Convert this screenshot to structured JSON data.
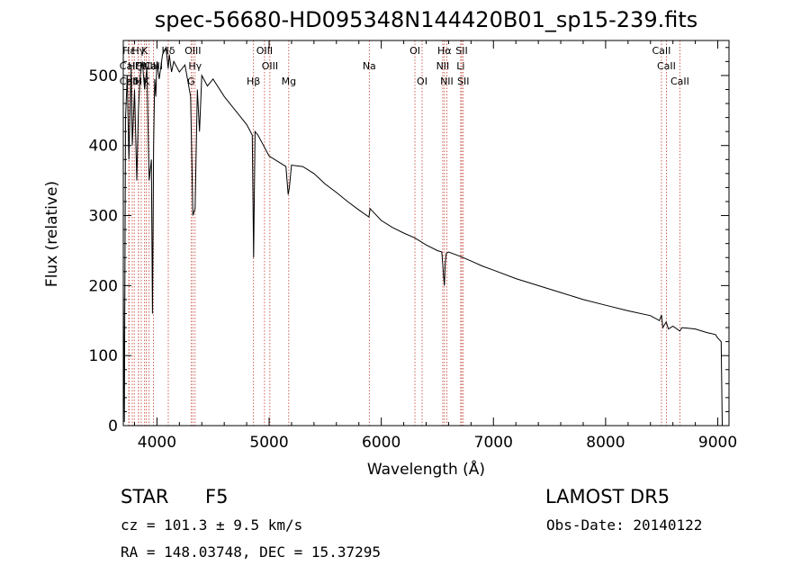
{
  "chart_data": {
    "type": "line",
    "title": "spec-56680-HD095348N144420B01_sp15-239.fits",
    "xlabel": "Wavelength (Å)",
    "ylabel": "Flux (relative)",
    "xlim": [
      3700,
      9100
    ],
    "ylim": [
      0,
      550
    ],
    "xticks": [
      4000,
      5000,
      6000,
      7000,
      8000,
      9000
    ],
    "yticks": [
      0,
      100,
      200,
      300,
      400,
      500
    ],
    "grid": false,
    "line_color": "#000000",
    "marker_color": "#c0392b",
    "series": [
      {
        "x": [
          3700,
          3710,
          3720,
          3735,
          3750,
          3770,
          3780,
          3800,
          3820,
          3835,
          3850,
          3870,
          3890,
          3910,
          3930,
          3950,
          3960,
          3970,
          3980,
          3990,
          4000,
          4020,
          4050,
          4080,
          4100,
          4110,
          4130,
          4150,
          4200,
          4250,
          4300,
          4320,
          4340,
          4360,
          4380,
          4400,
          4450,
          4500,
          4600,
          4700,
          4800,
          4850,
          4862,
          4875,
          4900,
          4950,
          5000,
          5100,
          5150,
          5170,
          5180,
          5200,
          5300,
          5400,
          5500,
          5600,
          5700,
          5800,
          5890,
          5900,
          6000,
          6100,
          6200,
          6300,
          6400,
          6500,
          6540,
          6555,
          6563,
          6570,
          6580,
          6600,
          6700,
          6800,
          6900,
          7000,
          7200,
          7400,
          7600,
          7800,
          8000,
          8200,
          8400,
          8480,
          8498,
          8510,
          8540,
          8560,
          8600,
          8662,
          8680,
          8800,
          8900,
          8980,
          9000,
          9030,
          9040,
          9060
        ],
        "y": [
          200,
          5,
          440,
          500,
          380,
          510,
          400,
          480,
          350,
          450,
          500,
          520,
          480,
          510,
          350,
          380,
          160,
          400,
          495,
          470,
          520,
          495,
          530,
          540,
          510,
          530,
          505,
          520,
          505,
          515,
          470,
          300,
          310,
          480,
          420,
          500,
          485,
          495,
          470,
          450,
          430,
          415,
          240,
          420,
          415,
          400,
          385,
          375,
          370,
          330,
          340,
          372,
          370,
          360,
          345,
          333,
          320,
          308,
          298,
          310,
          293,
          283,
          275,
          268,
          258,
          250,
          248,
          215,
          200,
          232,
          246,
          248,
          242,
          235,
          228,
          222,
          210,
          200,
          190,
          180,
          172,
          164,
          157,
          150,
          158,
          140,
          148,
          138,
          142,
          135,
          140,
          138,
          133,
          130,
          125,
          120,
          0,
          0
        ]
      }
    ],
    "line_markers": [
      {
        "label": "Hε",
        "wavelength": 3750,
        "row": 0
      },
      {
        "label": "CaII",
        "wavelength": 3750,
        "row": 1
      },
      {
        "label": "CaII",
        "wavelength": 3750,
        "row": 2
      },
      {
        "label": "Hδ",
        "wavelength": 3780,
        "row": 2
      },
      {
        "label": "Hζ",
        "wavelength": 3798,
        "row": 1
      },
      {
        "label": "Hγ",
        "wavelength": 3835,
        "row": 0
      },
      {
        "label": "H",
        "wavelength": 3835,
        "row": 2
      },
      {
        "label": "Hε",
        "wavelength": 3860,
        "row": 1
      },
      {
        "label": "K",
        "wavelength": 3890,
        "row": 0
      },
      {
        "label": "K",
        "wavelength": 3905,
        "row": 2
      },
      {
        "label": "NII",
        "wavelength": 3930,
        "row": 1
      },
      {
        "label": "CaII",
        "wavelength": 3969,
        "row": 1
      },
      {
        "label": "Hδ",
        "wavelength": 4101,
        "row": 0
      },
      {
        "label": "OIII",
        "wavelength": 4320,
        "row": 0
      },
      {
        "label": "Hγ",
        "wavelength": 4340,
        "row": 1
      },
      {
        "label": "G",
        "wavelength": 4305,
        "row": 2
      },
      {
        "label": "Hβ",
        "wavelength": 4861,
        "row": 2
      },
      {
        "label": "OIII",
        "wavelength": 4959,
        "row": 0
      },
      {
        "label": "OIII",
        "wavelength": 5007,
        "row": 1
      },
      {
        "label": "Mg",
        "wavelength": 5175,
        "row": 2
      },
      {
        "label": "Na",
        "wavelength": 5893,
        "row": 1
      },
      {
        "label": "OI",
        "wavelength": 6300,
        "row": 0
      },
      {
        "label": "OI",
        "wavelength": 6364,
        "row": 2
      },
      {
        "label": "Hα",
        "wavelength": 6563,
        "row": 0
      },
      {
        "label": "NII",
        "wavelength": 6548,
        "row": 1
      },
      {
        "label": "NII",
        "wavelength": 6584,
        "row": 2
      },
      {
        "label": "SII",
        "wavelength": 6717,
        "row": 0
      },
      {
        "label": "Li",
        "wavelength": 6708,
        "row": 1
      },
      {
        "label": "SII",
        "wavelength": 6731,
        "row": 2
      },
      {
        "label": "CaII",
        "wavelength": 8498,
        "row": 0
      },
      {
        "label": "CaII",
        "wavelength": 8542,
        "row": 1
      },
      {
        "label": "CaII",
        "wavelength": 8662,
        "row": 2
      }
    ]
  },
  "info": {
    "object_class": "STAR",
    "subclass": "F5",
    "survey": "LAMOST DR5",
    "redshift": "cz = 101.3 ± 9.5 km/s",
    "obs_date": "Obs-Date: 20140122",
    "coords": "RA = 148.03748, DEC =  15.37295"
  }
}
